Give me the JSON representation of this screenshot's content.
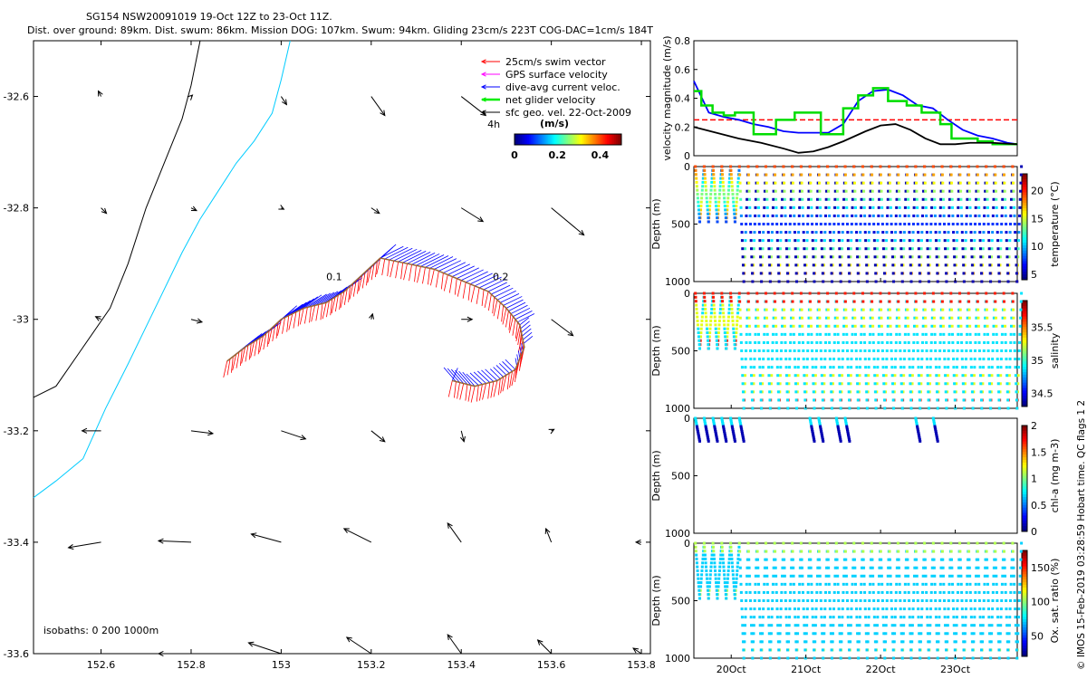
{
  "header": {
    "title_line1": "SG154 NSW20091019 19-Oct 12Z to 23-Oct 11Z.",
    "title_line2": "Dist. over ground: 89km. Dist. swum: 86km. Mission DOG: 107km. Swum: 94km. Gliding 23cm/s 223T COG-DAC=1cm/s 184T"
  },
  "side_note": "© IMOS 15-Feb-2019 03:28:59 Hobart time. QC flags 1 2",
  "chart_data": [
    {
      "id": "map",
      "type": "scatter",
      "title": "Glider track map",
      "xlim": [
        152.45,
        153.82
      ],
      "ylim": [
        -33.6,
        -32.5
      ],
      "xticks": [
        "152.6",
        "152.8",
        "153",
        "153.2",
        "153.4",
        "153.6",
        "153.8"
      ],
      "xtick_values": [
        152.6,
        152.8,
        153.0,
        153.2,
        153.4,
        153.6,
        153.8
      ],
      "yticks": [
        "-32.6",
        "-32.8",
        "-33",
        "-33.2",
        "-33.4",
        "-33.6"
      ],
      "ytick_values": [
        -32.6,
        -32.8,
        -33.0,
        -33.2,
        -33.4,
        -33.6
      ],
      "legend": [
        {
          "label": "25cm/s swim vector",
          "color": "#ff0000"
        },
        {
          "label": "GPS surface velocity",
          "color": "#ff00ff"
        },
        {
          "label": "dive-avg current veloc.",
          "color": "#0000ff"
        },
        {
          "label": "net glider velocity",
          "color": "#00ee00"
        },
        {
          "label": "sfc geo. vel. 22-Oct-2009",
          "color": "#000000"
        }
      ],
      "colorbar": {
        "title": "(m/s)",
        "ticks": [
          "0",
          "0.2",
          "0.4"
        ],
        "range": [
          0,
          0.5
        ]
      },
      "isobath_note": "isobaths: 0   200  1000m",
      "track_labels": [
        "4h",
        "0.1",
        "0.2"
      ],
      "isobath_0": [
        [
          152.45,
          -33.14
        ],
        [
          152.5,
          -33.12
        ],
        [
          152.56,
          -33.05
        ],
        [
          152.62,
          -32.98
        ],
        [
          152.66,
          -32.9
        ],
        [
          152.7,
          -32.8
        ],
        [
          152.74,
          -32.72
        ],
        [
          152.78,
          -32.64
        ],
        [
          152.8,
          -32.58
        ],
        [
          152.82,
          -32.5
        ]
      ],
      "isobath_200": [
        [
          152.45,
          -33.32
        ],
        [
          152.5,
          -33.29
        ],
        [
          152.56,
          -33.25
        ],
        [
          152.61,
          -33.16
        ],
        [
          152.66,
          -33.08
        ],
        [
          152.72,
          -32.98
        ],
        [
          152.78,
          -32.88
        ],
        [
          152.82,
          -32.82
        ],
        [
          152.86,
          -32.77
        ],
        [
          152.9,
          -32.72
        ],
        [
          152.94,
          -32.68
        ],
        [
          152.98,
          -32.63
        ],
        [
          153.0,
          -32.57
        ],
        [
          153.02,
          -32.5
        ]
      ],
      "track": [
        [
          152.88,
          -33.075
        ],
        [
          152.92,
          -33.05
        ],
        [
          152.96,
          -33.03
        ],
        [
          153.0,
          -33.0
        ],
        [
          153.05,
          -32.98
        ],
        [
          153.1,
          -32.97
        ],
        [
          153.14,
          -32.95
        ],
        [
          153.18,
          -32.92
        ],
        [
          153.22,
          -32.89
        ],
        [
          153.28,
          -32.9
        ],
        [
          153.34,
          -32.91
        ],
        [
          153.4,
          -32.93
        ],
        [
          153.46,
          -32.95
        ],
        [
          153.5,
          -32.98
        ],
        [
          153.53,
          -33.01
        ],
        [
          153.54,
          -33.05
        ],
        [
          153.52,
          -33.09
        ],
        [
          153.48,
          -33.11
        ],
        [
          153.43,
          -33.12
        ],
        [
          153.38,
          -33.11
        ]
      ],
      "geo_vectors": [
        {
          "lon": 152.6,
          "lat": -32.6,
          "u": -0.1,
          "v": 0.2
        },
        {
          "lon": 152.8,
          "lat": -32.6,
          "u": 0.05,
          "v": 0.05
        },
        {
          "lon": 153.0,
          "lat": -32.6,
          "u": 0.2,
          "v": -0.3
        },
        {
          "lon": 153.2,
          "lat": -32.6,
          "u": 0.5,
          "v": -0.7
        },
        {
          "lon": 153.4,
          "lat": -32.6,
          "u": 0.9,
          "v": -0.7
        },
        {
          "lon": 152.6,
          "lat": -32.8,
          "u": 0.2,
          "v": -0.2
        },
        {
          "lon": 152.8,
          "lat": -32.8,
          "u": 0.2,
          "v": -0.1
        },
        {
          "lon": 153.0,
          "lat": -32.8,
          "u": 0.1,
          "v": -0.05
        },
        {
          "lon": 153.2,
          "lat": -32.8,
          "u": 0.3,
          "v": -0.2
        },
        {
          "lon": 153.4,
          "lat": -32.8,
          "u": 0.8,
          "v": -0.5
        },
        {
          "lon": 153.6,
          "lat": -32.8,
          "u": 1.2,
          "v": -1.0
        },
        {
          "lon": 152.6,
          "lat": -33.0,
          "u": -0.2,
          "v": 0.1
        },
        {
          "lon": 152.8,
          "lat": -33.0,
          "u": 0.4,
          "v": -0.1
        },
        {
          "lon": 153.2,
          "lat": -33.0,
          "u": 0.05,
          "v": 0.2
        },
        {
          "lon": 153.4,
          "lat": -33.0,
          "u": 0.4,
          "v": 0.0
        },
        {
          "lon": 153.6,
          "lat": -33.0,
          "u": 0.8,
          "v": -0.6
        },
        {
          "lon": 152.6,
          "lat": -33.2,
          "u": -0.7,
          "v": 0.0
        },
        {
          "lon": 152.8,
          "lat": -33.2,
          "u": 0.8,
          "v": -0.1
        },
        {
          "lon": 153.0,
          "lat": -33.2,
          "u": 0.9,
          "v": -0.3
        },
        {
          "lon": 153.2,
          "lat": -33.2,
          "u": 0.5,
          "v": -0.4
        },
        {
          "lon": 153.4,
          "lat": -33.2,
          "u": 0.1,
          "v": -0.4
        },
        {
          "lon": 153.6,
          "lat": -33.2,
          "u": 0.1,
          "v": 0.05
        },
        {
          "lon": 152.6,
          "lat": -33.4,
          "u": -1.2,
          "v": -0.2
        },
        {
          "lon": 152.8,
          "lat": -33.4,
          "u": -1.2,
          "v": 0.05
        },
        {
          "lon": 153.0,
          "lat": -33.4,
          "u": -1.1,
          "v": 0.3
        },
        {
          "lon": 153.2,
          "lat": -33.4,
          "u": -1.0,
          "v": 0.5
        },
        {
          "lon": 153.4,
          "lat": -33.4,
          "u": -0.5,
          "v": 0.7
        },
        {
          "lon": 153.6,
          "lat": -33.4,
          "u": -0.2,
          "v": 0.5
        },
        {
          "lon": 153.8,
          "lat": -33.4,
          "u": -0.2,
          "v": 0.0
        },
        {
          "lon": 152.8,
          "lat": -33.6,
          "u": -1.2,
          "v": 0.0
        },
        {
          "lon": 153.0,
          "lat": -33.6,
          "u": -1.2,
          "v": 0.4
        },
        {
          "lon": 153.2,
          "lat": -33.6,
          "u": -0.9,
          "v": 0.6
        },
        {
          "lon": 153.4,
          "lat": -33.6,
          "u": -0.5,
          "v": 0.7
        },
        {
          "lon": 153.6,
          "lat": -33.6,
          "u": -0.5,
          "v": 0.5
        },
        {
          "lon": 153.8,
          "lat": -33.6,
          "u": -0.3,
          "v": 0.2
        }
      ]
    },
    {
      "id": "velocity",
      "type": "line",
      "ylabel": "velocity magnitude (m/s)",
      "xlim": [
        19.5,
        23.83
      ],
      "ylim": [
        0,
        0.8
      ],
      "yticks": [
        "0",
        "0.2",
        "0.4",
        "0.6",
        "0.8"
      ],
      "ytick_values": [
        0,
        0.2,
        0.4,
        0.6,
        0.8
      ],
      "reference_line": 0.25,
      "series": [
        {
          "name": "dive-avg current veloc.",
          "color": "#0000ff",
          "x": [
            19.5,
            19.7,
            19.9,
            20.1,
            20.3,
            20.5,
            20.7,
            20.9,
            21.1,
            21.3,
            21.5,
            21.7,
            21.9,
            22.1,
            22.3,
            22.5,
            22.7,
            22.9,
            23.1,
            23.3,
            23.5,
            23.7,
            23.83
          ],
          "y": [
            0.52,
            0.3,
            0.27,
            0.25,
            0.22,
            0.2,
            0.17,
            0.16,
            0.16,
            0.16,
            0.22,
            0.38,
            0.45,
            0.46,
            0.42,
            0.35,
            0.33,
            0.25,
            0.18,
            0.14,
            0.12,
            0.09,
            0.08
          ]
        },
        {
          "name": "net glider velocity",
          "color": "#00dd00",
          "x": [
            19.5,
            19.6,
            19.6,
            19.75,
            19.75,
            19.9,
            19.9,
            20.05,
            20.05,
            20.3,
            20.3,
            20.6,
            20.6,
            20.85,
            20.85,
            21.2,
            21.2,
            21.5,
            21.5,
            21.7,
            21.7,
            21.9,
            21.9,
            22.1,
            22.1,
            22.35,
            22.35,
            22.55,
            22.55,
            22.8,
            22.8,
            22.95,
            22.95,
            23.3,
            23.3,
            23.5,
            23.5,
            23.83
          ],
          "y": [
            0.45,
            0.45,
            0.35,
            0.35,
            0.3,
            0.3,
            0.28,
            0.28,
            0.3,
            0.3,
            0.15,
            0.15,
            0.25,
            0.25,
            0.3,
            0.3,
            0.15,
            0.15,
            0.33,
            0.33,
            0.42,
            0.42,
            0.47,
            0.47,
            0.38,
            0.38,
            0.35,
            0.35,
            0.3,
            0.3,
            0.22,
            0.22,
            0.12,
            0.12,
            0.1,
            0.1,
            0.08,
            0.08
          ]
        },
        {
          "name": "sfc geo. vel.",
          "color": "#000000",
          "x": [
            19.5,
            19.8,
            20.1,
            20.4,
            20.7,
            20.9,
            21.1,
            21.3,
            21.5,
            21.8,
            22.0,
            22.2,
            22.4,
            22.6,
            22.8,
            23.0,
            23.2,
            23.5,
            23.83
          ],
          "y": [
            0.2,
            0.16,
            0.12,
            0.09,
            0.05,
            0.02,
            0.03,
            0.06,
            0.1,
            0.17,
            0.21,
            0.22,
            0.18,
            0.12,
            0.08,
            0.08,
            0.09,
            0.09,
            0.08
          ]
        }
      ]
    },
    {
      "id": "profiles",
      "type": "scatter",
      "xlim": [
        19.5,
        23.83
      ],
      "xticks": [
        "20Oct",
        "21Oct",
        "22Oct",
        "23Oct"
      ],
      "xtick_values": [
        20,
        21,
        22,
        23
      ],
      "depth_ylabel": "Depth (m)",
      "depth_ticks": [
        "0",
        "500",
        "1000"
      ],
      "depth_tick_values": [
        0,
        500,
        1000
      ],
      "panels": [
        {
          "label": "temperature (°C)",
          "range": [
            4,
            23
          ],
          "ticks": [
            "5",
            "10",
            "15",
            "20"
          ],
          "tick_values": [
            5,
            10,
            15,
            20
          ]
        },
        {
          "label": "salinity",
          "range": [
            34.3,
            35.9
          ],
          "ticks": [
            "34.5",
            "35",
            "35.5"
          ],
          "tick_values": [
            34.5,
            35.0,
            35.5
          ]
        },
        {
          "label": "chl-a (mg m-3)",
          "range": [
            0,
            2
          ],
          "ticks": [
            "0",
            "0.5",
            "1",
            "1.5",
            "2"
          ],
          "tick_values": [
            0,
            0.5,
            1,
            1.5,
            2
          ]
        },
        {
          "label": "Ox. sat. ratio (%)",
          "range": [
            20,
            175
          ],
          "ticks": [
            "50",
            "100",
            "150"
          ],
          "tick_values": [
            50,
            100,
            150
          ]
        }
      ]
    }
  ]
}
